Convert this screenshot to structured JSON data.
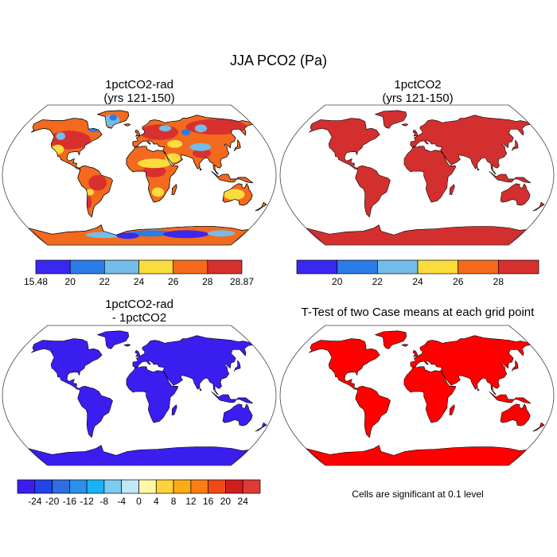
{
  "figure": {
    "title": "JJA PCO2 (Pa)"
  },
  "panels": [
    {
      "id": "top-left",
      "title_line1": "1pctCO2-rad",
      "title_line2": "(yrs 121-150)",
      "land_fill": "#f36a1e",
      "pattern": "mixed",
      "colorbar": {
        "colors": [
          "#3a28f0",
          "#2b7ce6",
          "#74bde8",
          "#fadc3c",
          "#f56a1a",
          "#d8302e"
        ],
        "labels": [
          "15.48",
          "20",
          "22",
          "24",
          "26",
          "28",
          "28.87"
        ]
      }
    },
    {
      "id": "top-right",
      "title_line1": "1pctCO2",
      "title_line2": "(yrs 121-150)",
      "land_fill": "#d32f2f",
      "pattern": "uniform",
      "colorbar": {
        "colors": [
          "#3a28f0",
          "#2b7ce6",
          "#74bde8",
          "#fadc3c",
          "#f56a1a",
          "#d8302e"
        ],
        "labels": [
          "20",
          "22",
          "24",
          "26",
          "28"
        ]
      }
    },
    {
      "id": "bottom-left",
      "title_line1": "1pctCO2-rad",
      "title_line2": "- 1pctCO2",
      "land_fill": "#3a1ef0",
      "pattern": "uniform",
      "colorbar": {
        "colors": [
          "#3a1ef0",
          "#2244e8",
          "#2e6ee0",
          "#2c8fe8",
          "#18b3f2",
          "#7ccbf0",
          "#c3e6f8",
          "#fef7a8",
          "#fdd23a",
          "#fcab18",
          "#fb7e12",
          "#f24a16",
          "#d01e1c",
          "#e03a36"
        ],
        "labels": [
          "-24",
          "-20",
          "-16",
          "-12",
          "-8",
          "-4",
          "0",
          "4",
          "8",
          "12",
          "16",
          "20",
          "24"
        ]
      }
    },
    {
      "id": "bottom-right",
      "title_line1": "T-Test of two Case means at each grid point",
      "title_line2": "",
      "land_fill": "#ff0000",
      "pattern": "uniform",
      "note": "Cells are significant at 0.1 level"
    }
  ]
}
